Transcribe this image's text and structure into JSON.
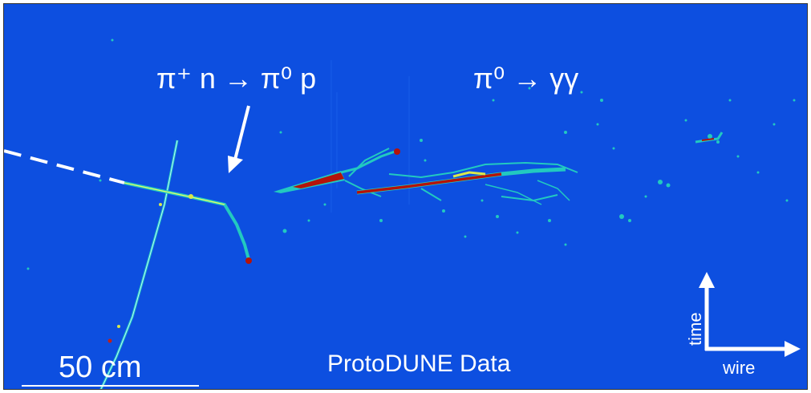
{
  "annotations": {
    "reaction_charge_exchange": "π⁺ n → π⁰ p",
    "reaction_pi0_decay": "π⁰ → γγ",
    "scale_bar": "50 cm",
    "dataset": "ProtoDUNE Data"
  },
  "axes": {
    "vertical": "time",
    "horizontal": "wire"
  },
  "colors": {
    "background": "#0d4fe0",
    "track_low": "#27d9c6",
    "track_mid": "#d9e84a",
    "track_high": "#b5130a",
    "text": "#ffffff"
  }
}
